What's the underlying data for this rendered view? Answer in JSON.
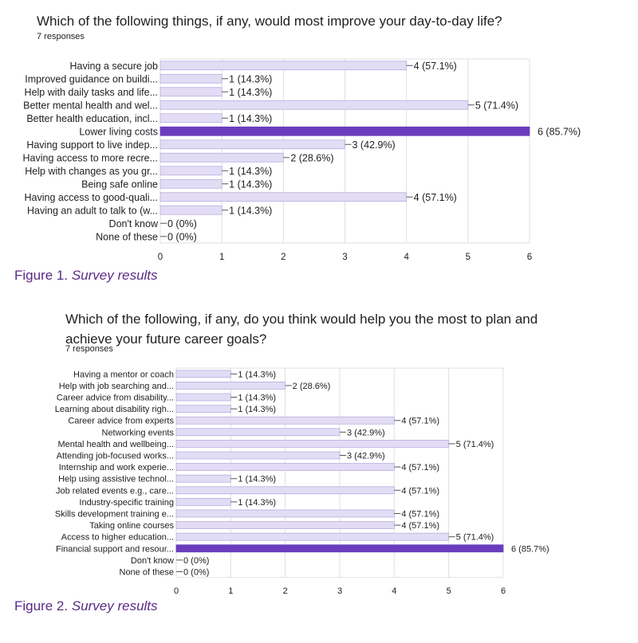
{
  "chart_data": [
    {
      "type": "bar",
      "orientation": "horizontal",
      "title": "Which of the following things, if any, would most improve your day-to-day life?",
      "subtitle": "7 responses",
      "caption_prefix": "Figure 1.",
      "caption_italic": "Survey results",
      "categories": [
        "Having a secure job",
        "Improved guidance on buildi...",
        "Help with daily tasks and life...",
        "Better mental health and wel...",
        "Better health education, incl...",
        "Lower living costs",
        "Having support to live indep...",
        "Having access to more recre...",
        "Help with changes as you gr...",
        "Being safe online",
        "Having access to good-quali...",
        "Having an adult to talk to (w...",
        "Don't know",
        "None of these"
      ],
      "values": [
        4,
        1,
        1,
        5,
        1,
        6,
        3,
        2,
        1,
        1,
        4,
        1,
        0,
        0
      ],
      "labels": [
        "4 (57.1%)",
        "1 (14.3%)",
        "1 (14.3%)",
        "5 (71.4%)",
        "1 (14.3%)",
        "6 (85.7%)",
        "3 (42.9%)",
        "2 (28.6%)",
        "1 (14.3%)",
        "1 (14.3%)",
        "4 (57.1%)",
        "1 (14.3%)",
        "0 (0%)",
        "0 (0%)"
      ],
      "highlight_index": 5,
      "xlim": [
        0,
        6
      ],
      "xticks": [
        "0",
        "1",
        "2",
        "3",
        "4",
        "5",
        "6"
      ],
      "grid": true,
      "colors": {
        "bar": "#e2dcf5",
        "bar_border": "#b8aee0",
        "highlight": "#6a3cbc",
        "grid": "#e0e0e0"
      }
    },
    {
      "type": "bar",
      "orientation": "horizontal",
      "title": "Which of the following, if any, do you think would help you the most to plan and achieve your future career goals?",
      "subtitle": "7 responses",
      "caption_prefix": "Figure 2.",
      "caption_italic": "Survey results",
      "categories": [
        "Having a mentor or coach",
        "Help with job searching and...",
        "Career advice from disability...",
        "Learning about disability righ...",
        "Career advice from experts",
        "Networking events",
        "Mental health and wellbeing...",
        "Attending job-focused works...",
        "Internship and work experie...",
        "Help using assistive technol...",
        "Job related events e.g., care...",
        "Industry-specific training",
        "Skills development training e...",
        "Taking online courses",
        "Access to higher education...",
        "Financial support and resour...",
        "Don't know",
        "None of these"
      ],
      "values": [
        1,
        2,
        1,
        1,
        4,
        3,
        5,
        3,
        4,
        1,
        4,
        1,
        4,
        4,
        5,
        6,
        0,
        0
      ],
      "labels": [
        "1 (14.3%)",
        "2 (28.6%)",
        "1 (14.3%)",
        "1 (14.3%)",
        "4 (57.1%)",
        "3 (42.9%)",
        "5 (71.4%)",
        "3 (42.9%)",
        "4 (57.1%)",
        "1 (14.3%)",
        "4 (57.1%)",
        "1 (14.3%)",
        "4 (57.1%)",
        "4 (57.1%)",
        "5 (71.4%)",
        "6 (85.7%)",
        "0 (0%)",
        "0 (0%)"
      ],
      "highlight_index": 15,
      "xlim": [
        0,
        6
      ],
      "xticks": [
        "0",
        "1",
        "2",
        "3",
        "4",
        "5",
        "6"
      ],
      "grid": true,
      "colors": {
        "bar": "#e2dcf5",
        "bar_border": "#b8aee0",
        "highlight": "#6a3cbc",
        "grid": "#e0e0e0"
      }
    }
  ]
}
